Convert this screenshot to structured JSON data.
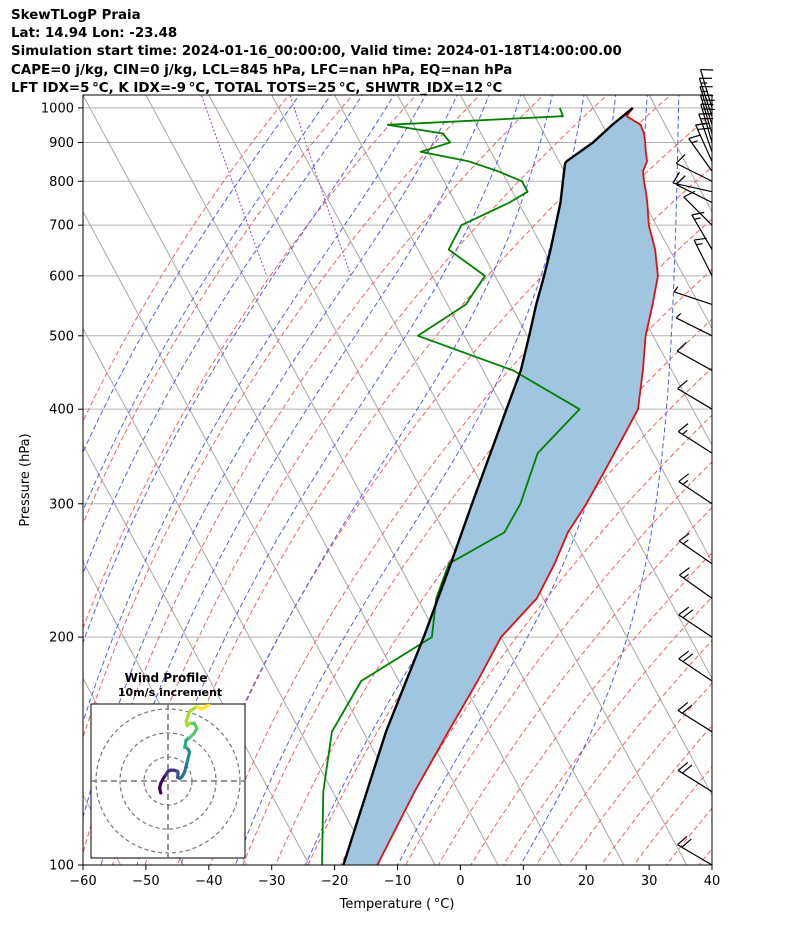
{
  "header": {
    "lines": [
      "SkewTLogP Praia",
      "Lat: 14.94   Lon: -23.48",
      "Simulation start time: 2024-01-16_00:00:00, Valid time: 2024-01-18T14:00:00.00",
      "CAPE=0 j/kg, CIN=0 j/kg, LCL=845 hPa, LFC=nan hPa, EQ=nan hPa",
      "LFT IDX=5 °C, K IDX=-9 °C, TOTAL TOTS=25 °C, SHWTR_IDX=12 °C"
    ]
  },
  "chart_data": {
    "type": "line",
    "chart_kind": "skew-T log-P",
    "xlabel": "Temperature ( °C)",
    "ylabel": "Pressure (hPa)",
    "xlim": [
      -60,
      40
    ],
    "ylim": [
      1040,
      100
    ],
    "y_scale": "log",
    "x_ticks": [
      -60,
      -50,
      -40,
      -30,
      -20,
      -10,
      0,
      10,
      20,
      30,
      40
    ],
    "x_tick_labels": [
      "−60",
      "−50",
      "−40",
      "−30",
      "−20",
      "−10",
      "0",
      "10",
      "20",
      "30",
      "40"
    ],
    "y_ticks": [
      1000,
      900,
      800,
      700,
      600,
      500,
      400,
      300,
      200,
      100
    ],
    "y_tick_labels": [
      "1000",
      "900",
      "800",
      "700",
      "600",
      "500",
      "400",
      "300",
      "200",
      "100"
    ],
    "grid": true,
    "colors": {
      "temperature": "#e01010",
      "dewpoint": "#008000",
      "parcel": "#000000",
      "shade": "#a0c5e0",
      "dry_adiabat": "#f06060",
      "moist_adiabat": "#4a5ef0",
      "isotherm": "#a8a8a8",
      "mixing_ratio": "#9a40c8"
    },
    "series": [
      {
        "role": "temperature",
        "pressure": [
          1000,
          975,
          950,
          925,
          900,
          875,
          850,
          825,
          800,
          775,
          750,
          700,
          650,
          600,
          550,
          500,
          450,
          400,
          350,
          300,
          275,
          250,
          225,
          200,
          175,
          150,
          125,
          100
        ],
        "values": [
          26.3,
          24.6,
          26.1,
          25.9,
          25.3,
          24.6,
          24.0,
          22.5,
          21.8,
          21.2,
          20.5,
          18.8,
          17.7,
          15.9,
          12.6,
          8.8,
          5.4,
          1.3,
          -6.2,
          -15.0,
          -20.4,
          -25.2,
          -31.0,
          -40.0,
          -47.5,
          -56.5,
          -67.0,
          -79.2
        ]
      },
      {
        "role": "dewpoint",
        "pressure": [
          1000,
          975,
          950,
          925,
          900,
          875,
          850,
          825,
          800,
          775,
          750,
          700,
          650,
          600,
          550,
          500,
          450,
          400,
          350,
          300,
          275,
          250,
          225,
          200,
          175,
          150,
          125,
          100
        ],
        "values": [
          14.7,
          14.5,
          -14.1,
          -6.1,
          -5.7,
          -11.2,
          -4.4,
          -0.6,
          2.4,
          2.4,
          -1.4,
          -11.0,
          -15.1,
          -11.6,
          -17.1,
          -27.4,
          -15.2,
          -8.0,
          -18.4,
          -25.5,
          -30.5,
          -42.0,
          -47.0,
          -51.0,
          -66.0,
          -75.0,
          -81.5,
          -88.0
        ]
      },
      {
        "role": "parcel",
        "pressure": [
          1000,
          950,
          900,
          850,
          845,
          800,
          750,
          700,
          650,
          600,
          550,
          500,
          450,
          400,
          350,
          300,
          250,
          200,
          150,
          100
        ],
        "values": [
          26.3,
          21.6,
          17.0,
          11.2,
          10.8,
          8.9,
          6.7,
          4.0,
          1.1,
          -2.2,
          -5.9,
          -9.7,
          -14.0,
          -19.6,
          -25.9,
          -33.2,
          -41.7,
          -52.3,
          -66.4,
          -84.6
        ]
      }
    ],
    "wind_barbs": {
      "pressure": [
        1000,
        975,
        950,
        925,
        900,
        875,
        850,
        825,
        800,
        775,
        750,
        700,
        650,
        600,
        550,
        500,
        450,
        400,
        350,
        300,
        250,
        225,
        200,
        175,
        150,
        125,
        100
      ],
      "u_kt": [
        -3,
        -4,
        -5,
        -6,
        -7,
        -8,
        -9,
        -10,
        -10,
        -9,
        -8,
        -8,
        -7,
        -7,
        -6,
        -6,
        -9,
        -10,
        -11,
        -12,
        -13,
        -14,
        -15,
        -15,
        -16,
        -16,
        -17
      ],
      "v_kt": [
        10,
        12,
        16,
        20,
        24,
        23,
        20,
        14,
        5,
        2,
        4,
        8,
        12,
        14,
        2,
        3,
        5,
        6,
        7,
        8,
        9,
        10,
        10,
        10,
        10,
        10,
        10
      ]
    },
    "inset": {
      "title": "Wind Profile",
      "subtitle": "10m/s increment",
      "rings_ms": [
        10,
        20,
        30
      ],
      "hodograph_u": [
        -3,
        -3.5,
        -3,
        -2,
        -1,
        0,
        1,
        2.5,
        4,
        4.2,
        4,
        5,
        6,
        7,
        7.5,
        8,
        8.5,
        9,
        8.5,
        7.5,
        7,
        7.5,
        9,
        11,
        12,
        11,
        9,
        8,
        7.5,
        9,
        12,
        14,
        16,
        17
      ],
      "hodograph_v": [
        -5,
        -3,
        -1,
        1,
        2.5,
        4,
        4.5,
        4.5,
        4,
        3,
        1.5,
        1,
        2,
        4,
        6,
        8,
        10,
        12,
        13,
        14,
        14,
        17,
        18,
        20,
        22,
        24,
        24,
        23,
        25,
        29,
        31,
        30,
        31,
        32
      ],
      "cmap": "viridis"
    }
  }
}
